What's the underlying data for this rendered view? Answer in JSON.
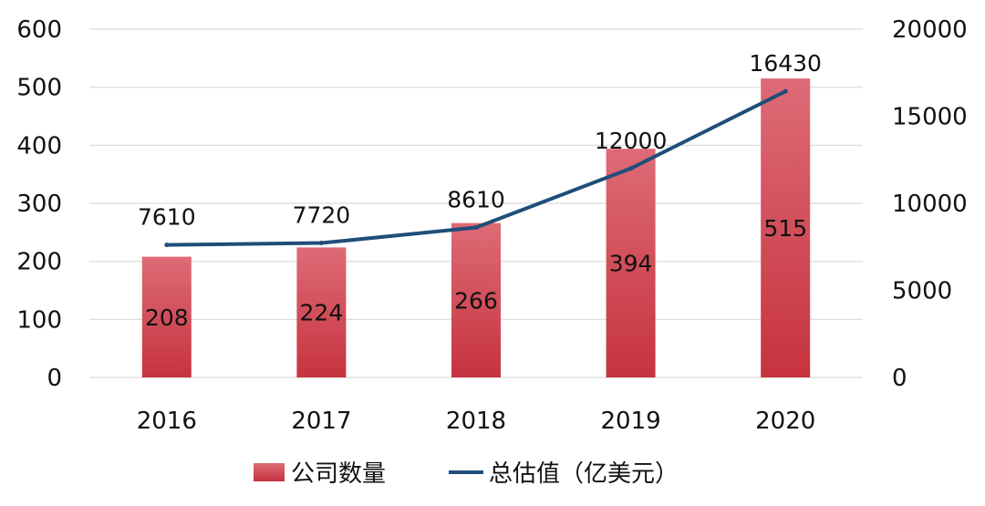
{
  "chart_data": {
    "type": "bar",
    "categories": [
      "2016",
      "2017",
      "2018",
      "2019",
      "2020"
    ],
    "series": [
      {
        "name": "公司数量",
        "type": "bar",
        "axis": "left",
        "values": [
          208,
          224,
          266,
          394,
          515
        ],
        "color": "#D0414C"
      },
      {
        "name": "总估值（亿美元）",
        "type": "line",
        "axis": "right",
        "values": [
          7610,
          7720,
          8610,
          12000,
          16430
        ],
        "color": "#1F4E79"
      }
    ],
    "y_left": {
      "min": 0,
      "max": 600,
      "ticks": [
        "0",
        "100",
        "200",
        "300",
        "400",
        "500",
        "600"
      ]
    },
    "y_right": {
      "min": 0,
      "max": 20000,
      "ticks": [
        "0",
        "5000",
        "10000",
        "15000",
        "20000"
      ]
    },
    "grid": true,
    "legend": "bottom"
  }
}
